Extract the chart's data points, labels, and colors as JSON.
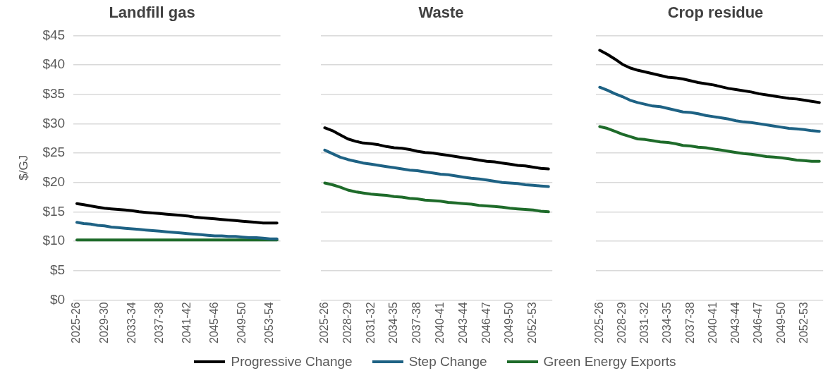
{
  "chart_data": [
    {
      "type": "line",
      "title": "Landfill gas",
      "ylabel": "$/GJ",
      "categories": [
        "2025-26",
        null,
        null,
        null,
        "2029-30",
        null,
        null,
        null,
        "2033-34",
        null,
        null,
        null,
        "2037-38",
        null,
        null,
        null,
        "2041-42",
        null,
        null,
        null,
        "2045-46",
        null,
        null,
        null,
        "2049-50",
        null,
        null,
        null,
        "2053-54",
        null
      ],
      "series": [
        {
          "name": "Progressive Change",
          "color": "#000000",
          "values": [
            16.4,
            16.2,
            16.0,
            15.8,
            15.6,
            15.5,
            15.4,
            15.3,
            15.2,
            15.0,
            14.9,
            14.8,
            14.7,
            14.6,
            14.5,
            14.4,
            14.3,
            14.1,
            14.0,
            13.9,
            13.8,
            13.7,
            13.6,
            13.5,
            13.4,
            13.3,
            13.2,
            13.1,
            13.1,
            13.1
          ]
        },
        {
          "name": "Step Change",
          "color": "#1e6284",
          "values": [
            13.2,
            13.0,
            12.9,
            12.7,
            12.6,
            12.4,
            12.3,
            12.2,
            12.1,
            12.0,
            11.9,
            11.8,
            11.7,
            11.6,
            11.5,
            11.4,
            11.3,
            11.2,
            11.1,
            11.0,
            10.9,
            10.9,
            10.8,
            10.8,
            10.7,
            10.6,
            10.6,
            10.5,
            10.4,
            10.4
          ]
        },
        {
          "name": "Green Energy Exports",
          "color": "#1e6b2a",
          "values": [
            10.2,
            10.2,
            10.2,
            10.2,
            10.2,
            10.2,
            10.2,
            10.2,
            10.2,
            10.2,
            10.2,
            10.2,
            10.2,
            10.2,
            10.2,
            10.2,
            10.2,
            10.2,
            10.2,
            10.2,
            10.2,
            10.2,
            10.2,
            10.2,
            10.2,
            10.2,
            10.2,
            10.2,
            10.2,
            10.2
          ]
        }
      ],
      "ylim": [
        0,
        45
      ],
      "yticks": [
        {
          "value": 0,
          "label": "$0"
        },
        {
          "value": 5,
          "label": "$5"
        },
        {
          "value": 10,
          "label": "$10"
        },
        {
          "value": 15,
          "label": "$15"
        },
        {
          "value": 20,
          "label": "$20"
        },
        {
          "value": 25,
          "label": "$25"
        },
        {
          "value": 30,
          "label": "$30"
        },
        {
          "value": 35,
          "label": "$35"
        },
        {
          "value": 40,
          "label": "$40"
        },
        {
          "value": 45,
          "label": "$45"
        }
      ],
      "grid": "y",
      "legend": "bottom",
      "marker": "none",
      "line_style": "solid"
    },
    {
      "type": "line",
      "title": "Waste",
      "categories": [
        "2025-26",
        null,
        null,
        "2028-29",
        null,
        null,
        "2031-32",
        null,
        null,
        "2034-35",
        null,
        null,
        "2037-38",
        null,
        null,
        "2040-41",
        null,
        null,
        "2043-44",
        null,
        null,
        "2046-47",
        null,
        null,
        "2049-50",
        null,
        null,
        "2052-53",
        null,
        null
      ],
      "series": [
        {
          "color": "#000000",
          "values": [
            29.3,
            28.8,
            28.1,
            27.4,
            27.0,
            26.7,
            26.6,
            26.4,
            26.1,
            25.9,
            25.8,
            25.6,
            25.3,
            25.1,
            25.0,
            24.8,
            24.6,
            24.4,
            24.2,
            24.0,
            23.8,
            23.6,
            23.5,
            23.3,
            23.1,
            22.9,
            22.8,
            22.6,
            22.4,
            22.3
          ]
        },
        {
          "color": "#1e6284",
          "values": [
            25.5,
            24.9,
            24.3,
            23.9,
            23.6,
            23.3,
            23.1,
            22.9,
            22.7,
            22.5,
            22.3,
            22.1,
            22.0,
            21.8,
            21.6,
            21.4,
            21.3,
            21.1,
            20.9,
            20.7,
            20.6,
            20.4,
            20.2,
            20.0,
            19.9,
            19.8,
            19.6,
            19.5,
            19.4,
            19.3
          ]
        },
        {
          "color": "#1e6b2a",
          "values": [
            19.9,
            19.6,
            19.2,
            18.7,
            18.4,
            18.2,
            18.0,
            17.9,
            17.8,
            17.6,
            17.5,
            17.3,
            17.2,
            17.0,
            16.9,
            16.8,
            16.6,
            16.5,
            16.4,
            16.3,
            16.1,
            16.0,
            15.9,
            15.8,
            15.6,
            15.5,
            15.4,
            15.3,
            15.1,
            15.0
          ]
        }
      ],
      "ylim": [
        0,
        45
      ],
      "yticks": [
        0,
        5,
        10,
        15,
        20,
        25,
        30,
        35,
        40,
        45
      ],
      "grid": "y",
      "tick_labels": "x",
      "marker": "none",
      "line_style": "solid"
    },
    {
      "type": "line",
      "title": "Crop residue",
      "categories": [
        "2025-26",
        null,
        null,
        "2028-29",
        null,
        null,
        "2031-32",
        null,
        null,
        "2034-35",
        null,
        null,
        "2037-38",
        null,
        null,
        "2040-41",
        null,
        null,
        "2043-44",
        null,
        null,
        "2046-47",
        null,
        null,
        "2049-50",
        null,
        null,
        "2052-53",
        null,
        null
      ],
      "series": [
        {
          "color": "#000000",
          "values": [
            42.5,
            41.8,
            41.0,
            40.1,
            39.5,
            39.1,
            38.8,
            38.5,
            38.2,
            37.9,
            37.8,
            37.6,
            37.3,
            37.0,
            36.8,
            36.6,
            36.3,
            36.0,
            35.8,
            35.6,
            35.4,
            35.1,
            34.9,
            34.7,
            34.5,
            34.3,
            34.2,
            34.0,
            33.8,
            33.6
          ]
        },
        {
          "color": "#1e6284",
          "values": [
            36.2,
            35.7,
            35.1,
            34.6,
            34.0,
            33.6,
            33.3,
            33.0,
            32.9,
            32.6,
            32.3,
            32.0,
            31.9,
            31.7,
            31.4,
            31.2,
            31.0,
            30.8,
            30.5,
            30.3,
            30.2,
            30.0,
            29.8,
            29.6,
            29.4,
            29.2,
            29.1,
            29.0,
            28.8,
            28.7
          ]
        },
        {
          "color": "#1e6b2a",
          "values": [
            29.5,
            29.2,
            28.7,
            28.2,
            27.8,
            27.4,
            27.3,
            27.1,
            26.9,
            26.8,
            26.6,
            26.3,
            26.2,
            26.0,
            25.9,
            25.7,
            25.5,
            25.3,
            25.1,
            24.9,
            24.8,
            24.6,
            24.4,
            24.3,
            24.2,
            24.0,
            23.8,
            23.7,
            23.6,
            23.6
          ]
        }
      ],
      "ylim": [
        0,
        45
      ],
      "yticks": [
        0,
        5,
        10,
        15,
        20,
        25,
        30,
        35,
        40,
        45
      ],
      "grid": "y",
      "tick_labels": "x",
      "marker": "none",
      "line_style": "solid"
    }
  ]
}
